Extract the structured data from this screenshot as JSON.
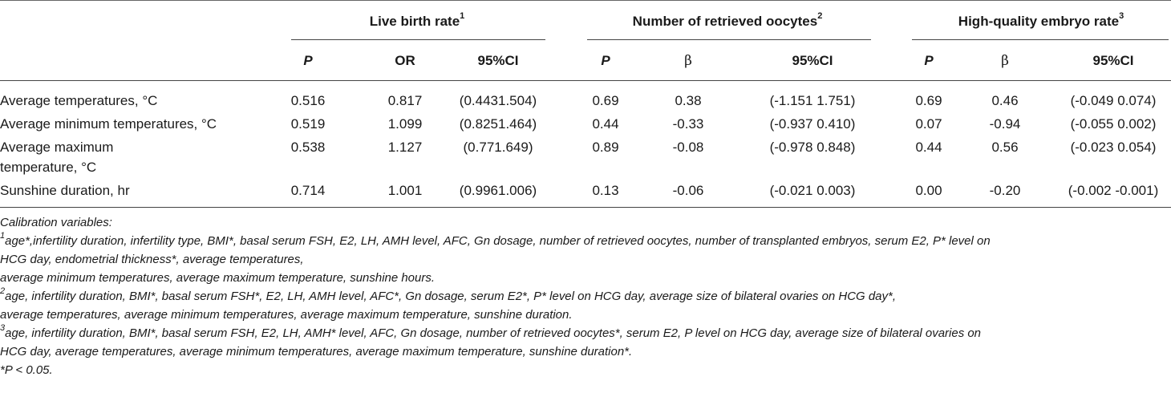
{
  "table": {
    "groups": [
      {
        "label": "Live birth rate",
        "sup": "1"
      },
      {
        "label": "Number of retrieved oocytes",
        "sup": "2"
      },
      {
        "label": "High-quality embryo rate",
        "sup": "3"
      }
    ],
    "subheaders": [
      "P",
      "OR",
      "95%CI",
      "P",
      "β",
      "95%CI",
      "P",
      "β",
      "95%CI"
    ],
    "rows": [
      {
        "label_lines": [
          "Average temperatures, °C"
        ],
        "cells": [
          "0.516",
          "0.817",
          "(0.4431.504)",
          "0.69",
          "0.38",
          "(-1.151 1.751)",
          "0.69",
          "0.46",
          "(-0.049 0.074)"
        ]
      },
      {
        "label_lines": [
          "Average minimum temperatures, °C"
        ],
        "cells": [
          "0.519",
          "1.099",
          "(0.8251.464)",
          "0.44",
          "-0.33",
          "(-0.937 0.410)",
          "0.07",
          "-0.94",
          "(-0.055 0.002)"
        ]
      },
      {
        "label_lines": [
          "Average maximum",
          "temperature, °C"
        ],
        "cells": [
          "0.538",
          "1.127",
          "(0.771.649)",
          "0.89",
          "-0.08",
          "(-0.978 0.848)",
          "0.44",
          "0.56",
          "(-0.023 0.054)"
        ]
      },
      {
        "label_lines": [
          "Sunshine duration, hr"
        ],
        "cells": [
          "0.714",
          "1.001",
          "(0.9961.006)",
          "0.13",
          "-0.06",
          "(-0.021 0.003)",
          "0.00",
          "-0.20",
          "(-0.002 -0.001)"
        ]
      }
    ]
  },
  "notes": {
    "calibration_label": "Calibration variables:",
    "note1": {
      "sup": "1",
      "lines": [
        "age*,infertility duration, infertility type, BMI*, basal serum FSH, E2, LH, AMH level, AFC, Gn dosage, number of retrieved oocytes, number of transplanted embryos, serum E2, P* level on",
        "HCG day, endometrial thickness*, average temperatures,",
        "average minimum temperatures, average maximum temperature, sunshine hours."
      ]
    },
    "note2": {
      "sup": "2",
      "lines": [
        "age, infertility duration, BMI*, basal serum FSH*, E2, LH, AMH level, AFC*, Gn dosage, serum E2*, P* level on HCG day, average size of bilateral ovaries on HCG day*,",
        "average temperatures, average minimum temperatures, average maximum temperature, sunshine duration."
      ]
    },
    "note3": {
      "sup": "3",
      "lines": [
        "age, infertility duration, BMI*, basal serum FSH, E2, LH, AMH* level, AFC, Gn dosage, number of retrieved oocytes*, serum E2, P level on HCG day, average size of bilateral ovaries on",
        "HCG day, average temperatures, average minimum temperatures, average maximum temperature, sunshine duration*."
      ]
    },
    "significance": "*P < 0.05."
  }
}
